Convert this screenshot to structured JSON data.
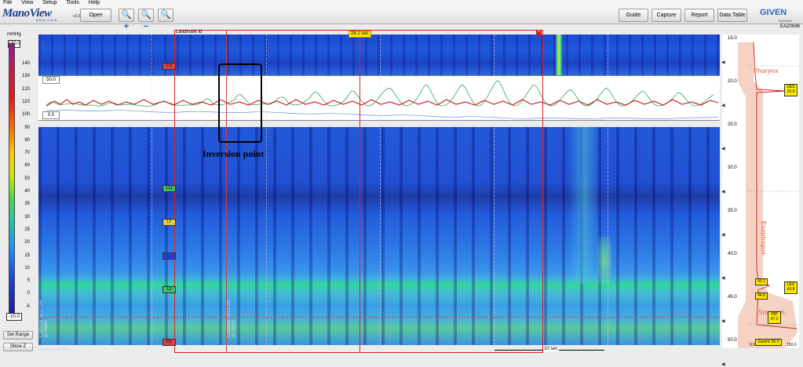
{
  "menu": [
    "File",
    "View",
    "Setup",
    "Tools",
    "Help"
  ],
  "app": {
    "logo": "ManoView",
    "logo_sub": "ANALYSIS",
    "version": "v3.0.1",
    "brand": "GIVEN",
    "brand_sub": "IMAGING",
    "case_id": "EAZ0696"
  },
  "toolbar": {
    "open": "Open",
    "zoom_in": "zoom-in-icon",
    "zoom_out": "zoom-out-icon",
    "zoom_fit": "zoom-fit-icon",
    "guide": "Guide",
    "capture": "Capture",
    "report": "Report",
    "data_table": "Data Table"
  },
  "pressure_scale": {
    "unit": "mmHg",
    "max": "150.0",
    "min": "-10.0",
    "ticks": [
      "140",
      "130",
      "120",
      "110",
      "100",
      "90",
      "80",
      "70",
      "60",
      "50",
      "40",
      "35",
      "30",
      "25",
      "20",
      "15",
      "10",
      "5",
      "0",
      "-5"
    ]
  },
  "left_buttons": {
    "set_range": "Set Range",
    "show_z": "Show Z"
  },
  "landmark": {
    "label": "Landmark Id",
    "time": "28.2 sec",
    "close": "×"
  },
  "trace": {
    "max": "50.0",
    "min": "0.0"
  },
  "markers": [
    "0.3",
    "L11",
    "L7",
    "",
    "L1",
    "D1"
  ],
  "annotation": {
    "inversion": "Inversion point"
  },
  "bottom": {
    "speed": "Speed 7.4/0.004",
    "time_scale": "10 sec",
    "vert1": "Catheter 5x10 cm (lr.mark)",
    "vert2": "Catheter 5x10 cm (lr.mark)"
  },
  "depth_axis": {
    "ticks": [
      "15.0",
      "20.0",
      "25.0",
      "30.0",
      "35.0",
      "40.0",
      "45.0",
      "50.0"
    ],
    "bottom_left": "0.0",
    "bottom_right": "150.0"
  },
  "anatomy": {
    "pharynx": "Pharynx",
    "esophagus": "Esophagus",
    "stomach": "Stomach"
  },
  "badges": {
    "ues_label": "UES",
    "ues_value": "20.9",
    "les_label": "LES",
    "les_value": "43.8",
    "v431": "43.1",
    "v446": "44.6",
    "pip_label": "PIP",
    "pip_value": "47.2",
    "gastric": "Gastric 50.0"
  },
  "colors": {
    "accent": "#1d3d8a",
    "selection": "#e0201f",
    "badge": "#ffe800"
  }
}
